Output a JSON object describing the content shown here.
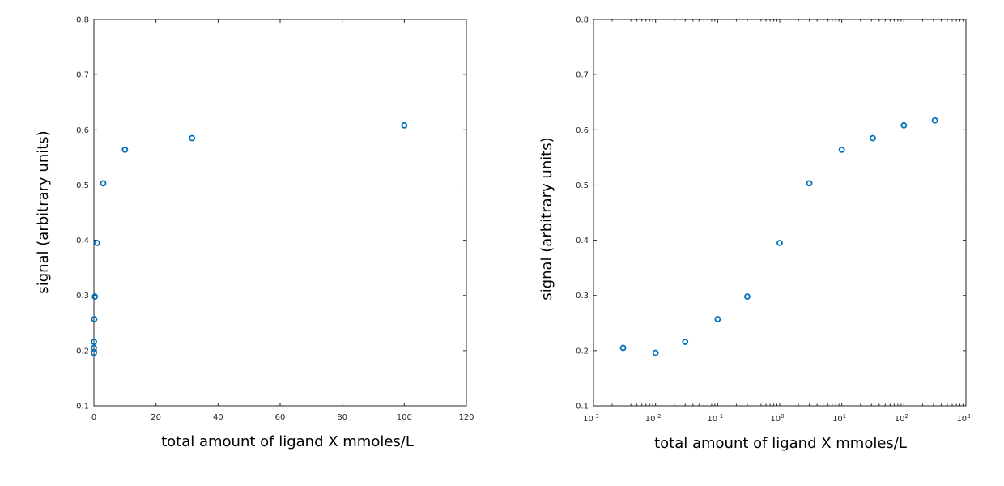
{
  "colors": {
    "marker": "#0072bd",
    "axis": "#262626",
    "background": "#ffffff"
  },
  "chart_data": [
    {
      "type": "scatter",
      "xscale": "linear",
      "xlabel": "total amount of ligand X mmoles/L",
      "ylabel": "signal (arbitrary units)",
      "xlim": [
        0,
        120
      ],
      "ylim": [
        0.1,
        0.8
      ],
      "xticks": [
        0,
        20,
        40,
        60,
        80,
        100,
        120
      ],
      "xtick_labels": [
        "0",
        "20",
        "40",
        "60",
        "80",
        "100",
        "120"
      ],
      "yticks": [
        0.1,
        0.2,
        0.3,
        0.4,
        0.5,
        0.6,
        0.7,
        0.8
      ],
      "ytick_labels": [
        "0.1",
        "0.2",
        "0.3",
        "0.4",
        "0.5",
        "0.6",
        "0.7",
        "0.8"
      ],
      "grid": false,
      "series": [
        {
          "marker": "circle-open",
          "x": [
            0.003,
            0.01,
            0.03,
            0.1,
            0.3,
            1,
            3,
            10,
            31.6,
            100
          ],
          "y": [
            0.205,
            0.196,
            0.216,
            0.257,
            0.298,
            0.395,
            0.503,
            0.564,
            0.585,
            0.608
          ]
        }
      ]
    },
    {
      "type": "scatter",
      "xscale": "log",
      "xlabel": "total amount of ligand X mmoles/L",
      "ylabel": "signal (arbitrary units)",
      "xlim": [
        0.001,
        1000
      ],
      "ylim": [
        0.1,
        0.8
      ],
      "xticks": [
        0.001,
        0.01,
        0.1,
        1,
        10,
        100,
        1000
      ],
      "xtick_exponents": [
        "-3",
        "-2",
        "-1",
        "0",
        "1",
        "2",
        "3"
      ],
      "xtick_base": "10",
      "yticks": [
        0.1,
        0.2,
        0.3,
        0.4,
        0.5,
        0.6,
        0.7,
        0.8
      ],
      "ytick_labels": [
        "0.1",
        "0.2",
        "0.3",
        "0.4",
        "0.5",
        "0.6",
        "0.7",
        "0.8"
      ],
      "grid": false,
      "series": [
        {
          "marker": "circle-open",
          "x": [
            0.003,
            0.01,
            0.03,
            0.1,
            0.3,
            1,
            3,
            10,
            31.6,
            100,
            316
          ],
          "y": [
            0.205,
            0.196,
            0.216,
            0.257,
            0.298,
            0.395,
            0.503,
            0.564,
            0.585,
            0.608,
            0.617
          ]
        }
      ]
    }
  ]
}
